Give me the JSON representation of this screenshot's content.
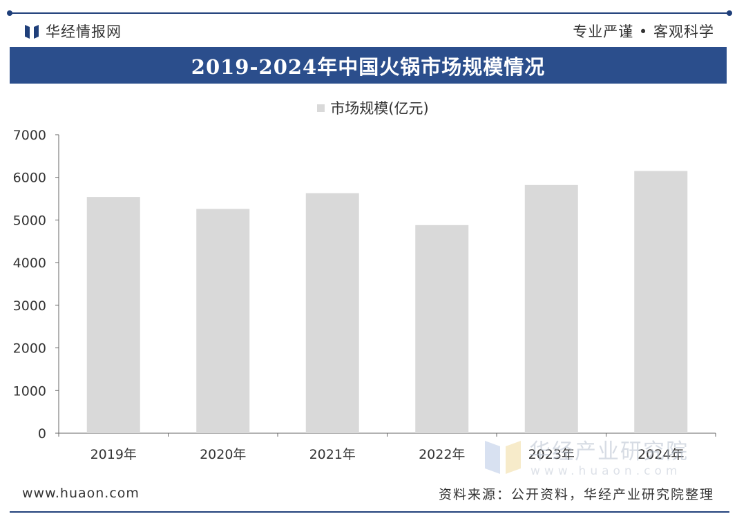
{
  "header": {
    "brand_name": "华经情报网",
    "slogan": "专业严谨 • 客观科学"
  },
  "title": "2019-2024年中国火锅市场规模情况",
  "footer": {
    "website": "www.huaon.com",
    "source": "资料来源：公开资料，华经产业研究院整理"
  },
  "watermark": {
    "text": "华经产业研究院",
    "url": "www.huaon.com"
  },
  "colors": {
    "brand_blue": "#2b4e8c",
    "bar_gray": "#d9d9d9",
    "axis": "#666666"
  },
  "chart_data": {
    "type": "bar",
    "categories": [
      "2019年",
      "2020年",
      "2021年",
      "2022年",
      "2023年",
      "2024年"
    ],
    "series": [
      {
        "name": "市场规模(亿元)",
        "values": [
          5540,
          5260,
          5630,
          4880,
          5820,
          6150
        ]
      }
    ],
    "ylim": [
      0,
      7000
    ],
    "yticks": [
      0,
      1000,
      2000,
      3000,
      4000,
      5000,
      6000,
      7000
    ],
    "legend_position": "top-center",
    "grid": false
  }
}
